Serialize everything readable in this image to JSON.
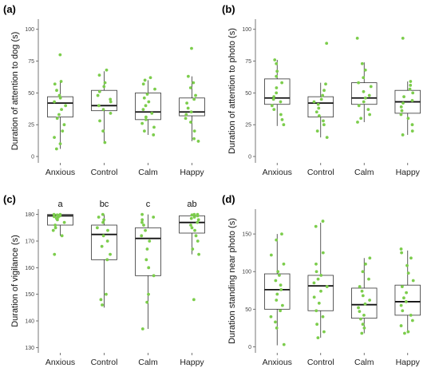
{
  "style": {
    "point_color": "#7ccd4c",
    "box_color": "#333333",
    "axis_color": "#555555"
  },
  "chart_data": [
    {
      "id": "a",
      "panel_label": "(a)",
      "type": "box",
      "ylabel": "Duration of attention to dog (s)",
      "ylim": [
        -5,
        108
      ],
      "yticks": [
        0,
        25,
        50,
        75,
        100
      ],
      "categories": [
        "Anxious",
        "Control",
        "Calm",
        "Happy"
      ],
      "boxes": [
        {
          "min": 6,
          "q1": 31,
          "median": 42,
          "q3": 47,
          "max": 59
        },
        {
          "min": 11,
          "q1": 36,
          "median": 40,
          "q3": 52,
          "max": 67
        },
        {
          "min": 17,
          "q1": 29,
          "median": 35,
          "q3": 50,
          "max": 60
        },
        {
          "min": 12,
          "q1": 32,
          "median": 35,
          "q3": 46,
          "max": 63
        }
      ],
      "points": [
        [
          80,
          59,
          57,
          52,
          48,
          46,
          43,
          40,
          37,
          33,
          30,
          25,
          20,
          15,
          10,
          6
        ],
        [
          68,
          64,
          58,
          55,
          51,
          48,
          45,
          43,
          40,
          37,
          34,
          28,
          20,
          11
        ],
        [
          62,
          60,
          57,
          53,
          49,
          46,
          43,
          40,
          37,
          34,
          31,
          29,
          26,
          23,
          20,
          17
        ],
        [
          85,
          63,
          58,
          54,
          48,
          45,
          42,
          38,
          35,
          33,
          30,
          27,
          20,
          14,
          12
        ]
      ]
    },
    {
      "id": "b",
      "panel_label": "(b)",
      "type": "box",
      "ylabel": "Duration of attention to photo (s)",
      "ylim": [
        -5,
        108
      ],
      "yticks": [
        0,
        25,
        50,
        75,
        100
      ],
      "categories": [
        "Anxious",
        "Control",
        "Calm",
        "Happy"
      ],
      "boxes": [
        {
          "min": 24,
          "q1": 41,
          "median": 46,
          "q3": 61,
          "max": 76
        },
        {
          "min": 15,
          "q1": 31,
          "median": 42,
          "q3": 47,
          "max": 58
        },
        {
          "min": 27,
          "q1": 41,
          "median": 46,
          "q3": 58,
          "max": 74
        },
        {
          "min": 17,
          "q1": 34,
          "median": 43,
          "q3": 52,
          "max": 59
        }
      ],
      "points": [
        [
          76,
          73,
          67,
          63,
          58,
          54,
          50,
          47,
          45,
          43,
          40,
          37,
          33,
          29,
          25
        ],
        [
          89,
          57,
          52,
          48,
          45,
          43,
          41,
          38,
          35,
          32,
          28,
          25,
          20,
          15
        ],
        [
          93,
          73,
          68,
          62,
          58,
          55,
          51,
          48,
          46,
          43,
          40,
          37,
          33,
          30,
          27
        ],
        [
          93,
          59,
          56,
          53,
          50,
          47,
          44,
          42,
          39,
          36,
          33,
          30,
          25,
          20,
          17
        ]
      ]
    },
    {
      "id": "c",
      "panel_label": "(c)",
      "type": "box",
      "ylabel": "Duration of vigilance (s)",
      "ylim": [
        128,
        182
      ],
      "yticks": [
        130,
        140,
        150,
        160,
        170,
        180
      ],
      "categories": [
        "Anxious",
        "Control",
        "Calm",
        "Happy"
      ],
      "group_labels": [
        "a",
        "bc",
        "c",
        "ab"
      ],
      "boxes": [
        {
          "min": 172,
          "q1": 176,
          "median": 179.5,
          "q3": 180,
          "max": 180
        },
        {
          "min": 145,
          "q1": 163,
          "median": 172.5,
          "q3": 176,
          "max": 180
        },
        {
          "min": 137,
          "q1": 157,
          "median": 171,
          "q3": 175,
          "max": 180
        },
        {
          "min": 165,
          "q1": 173,
          "median": 177,
          "q3": 179.5,
          "max": 180
        }
      ],
      "points": [
        [
          180,
          180,
          179.8,
          179.5,
          179.2,
          179,
          178.5,
          178,
          177,
          176,
          175,
          174,
          172,
          165
        ],
        [
          180,
          179,
          178,
          177,
          175,
          174,
          172,
          170,
          168,
          165,
          163,
          150,
          148,
          146
        ],
        [
          180,
          179,
          178,
          177,
          176,
          174,
          172,
          170,
          167,
          163,
          160,
          157,
          150,
          147,
          137
        ],
        [
          180,
          180,
          179.8,
          179.5,
          179,
          178.5,
          178,
          177,
          176,
          175,
          174,
          172,
          170,
          167,
          165,
          148
        ]
      ]
    },
    {
      "id": "d",
      "panel_label": "(d)",
      "type": "box",
      "ylabel": "Duration standing near photo (s)",
      "ylim": [
        -8,
        183
      ],
      "yticks": [
        0,
        50,
        100,
        150
      ],
      "categories": [
        "Anxious",
        "Control",
        "Calm",
        "Happy"
      ],
      "boxes": [
        {
          "min": 2,
          "q1": 50,
          "median": 76,
          "q3": 97,
          "max": 150
        },
        {
          "min": 12,
          "q1": 48,
          "median": 81,
          "q3": 95,
          "max": 165
        },
        {
          "min": 18,
          "q1": 38,
          "median": 56,
          "q3": 78,
          "max": 118
        },
        {
          "min": 18,
          "q1": 42,
          "median": 60,
          "q3": 82,
          "max": 128
        }
      ],
      "points": [
        [
          150,
          142,
          122,
          110,
          100,
          95,
          88,
          82,
          76,
          70,
          62,
          55,
          48,
          40,
          33,
          25,
          3
        ],
        [
          167,
          160,
          125,
          110,
          100,
          95,
          90,
          85,
          80,
          74,
          66,
          58,
          48,
          40,
          30,
          20,
          12
        ],
        [
          118,
          110,
          100,
          90,
          80,
          74,
          68,
          62,
          57,
          52,
          47,
          42,
          37,
          30,
          25,
          18
        ],
        [
          130,
          125,
          118,
          108,
          98,
          88,
          80,
          72,
          65,
          60,
          55,
          48,
          42,
          35,
          28,
          20,
          18
        ]
      ]
    }
  ]
}
